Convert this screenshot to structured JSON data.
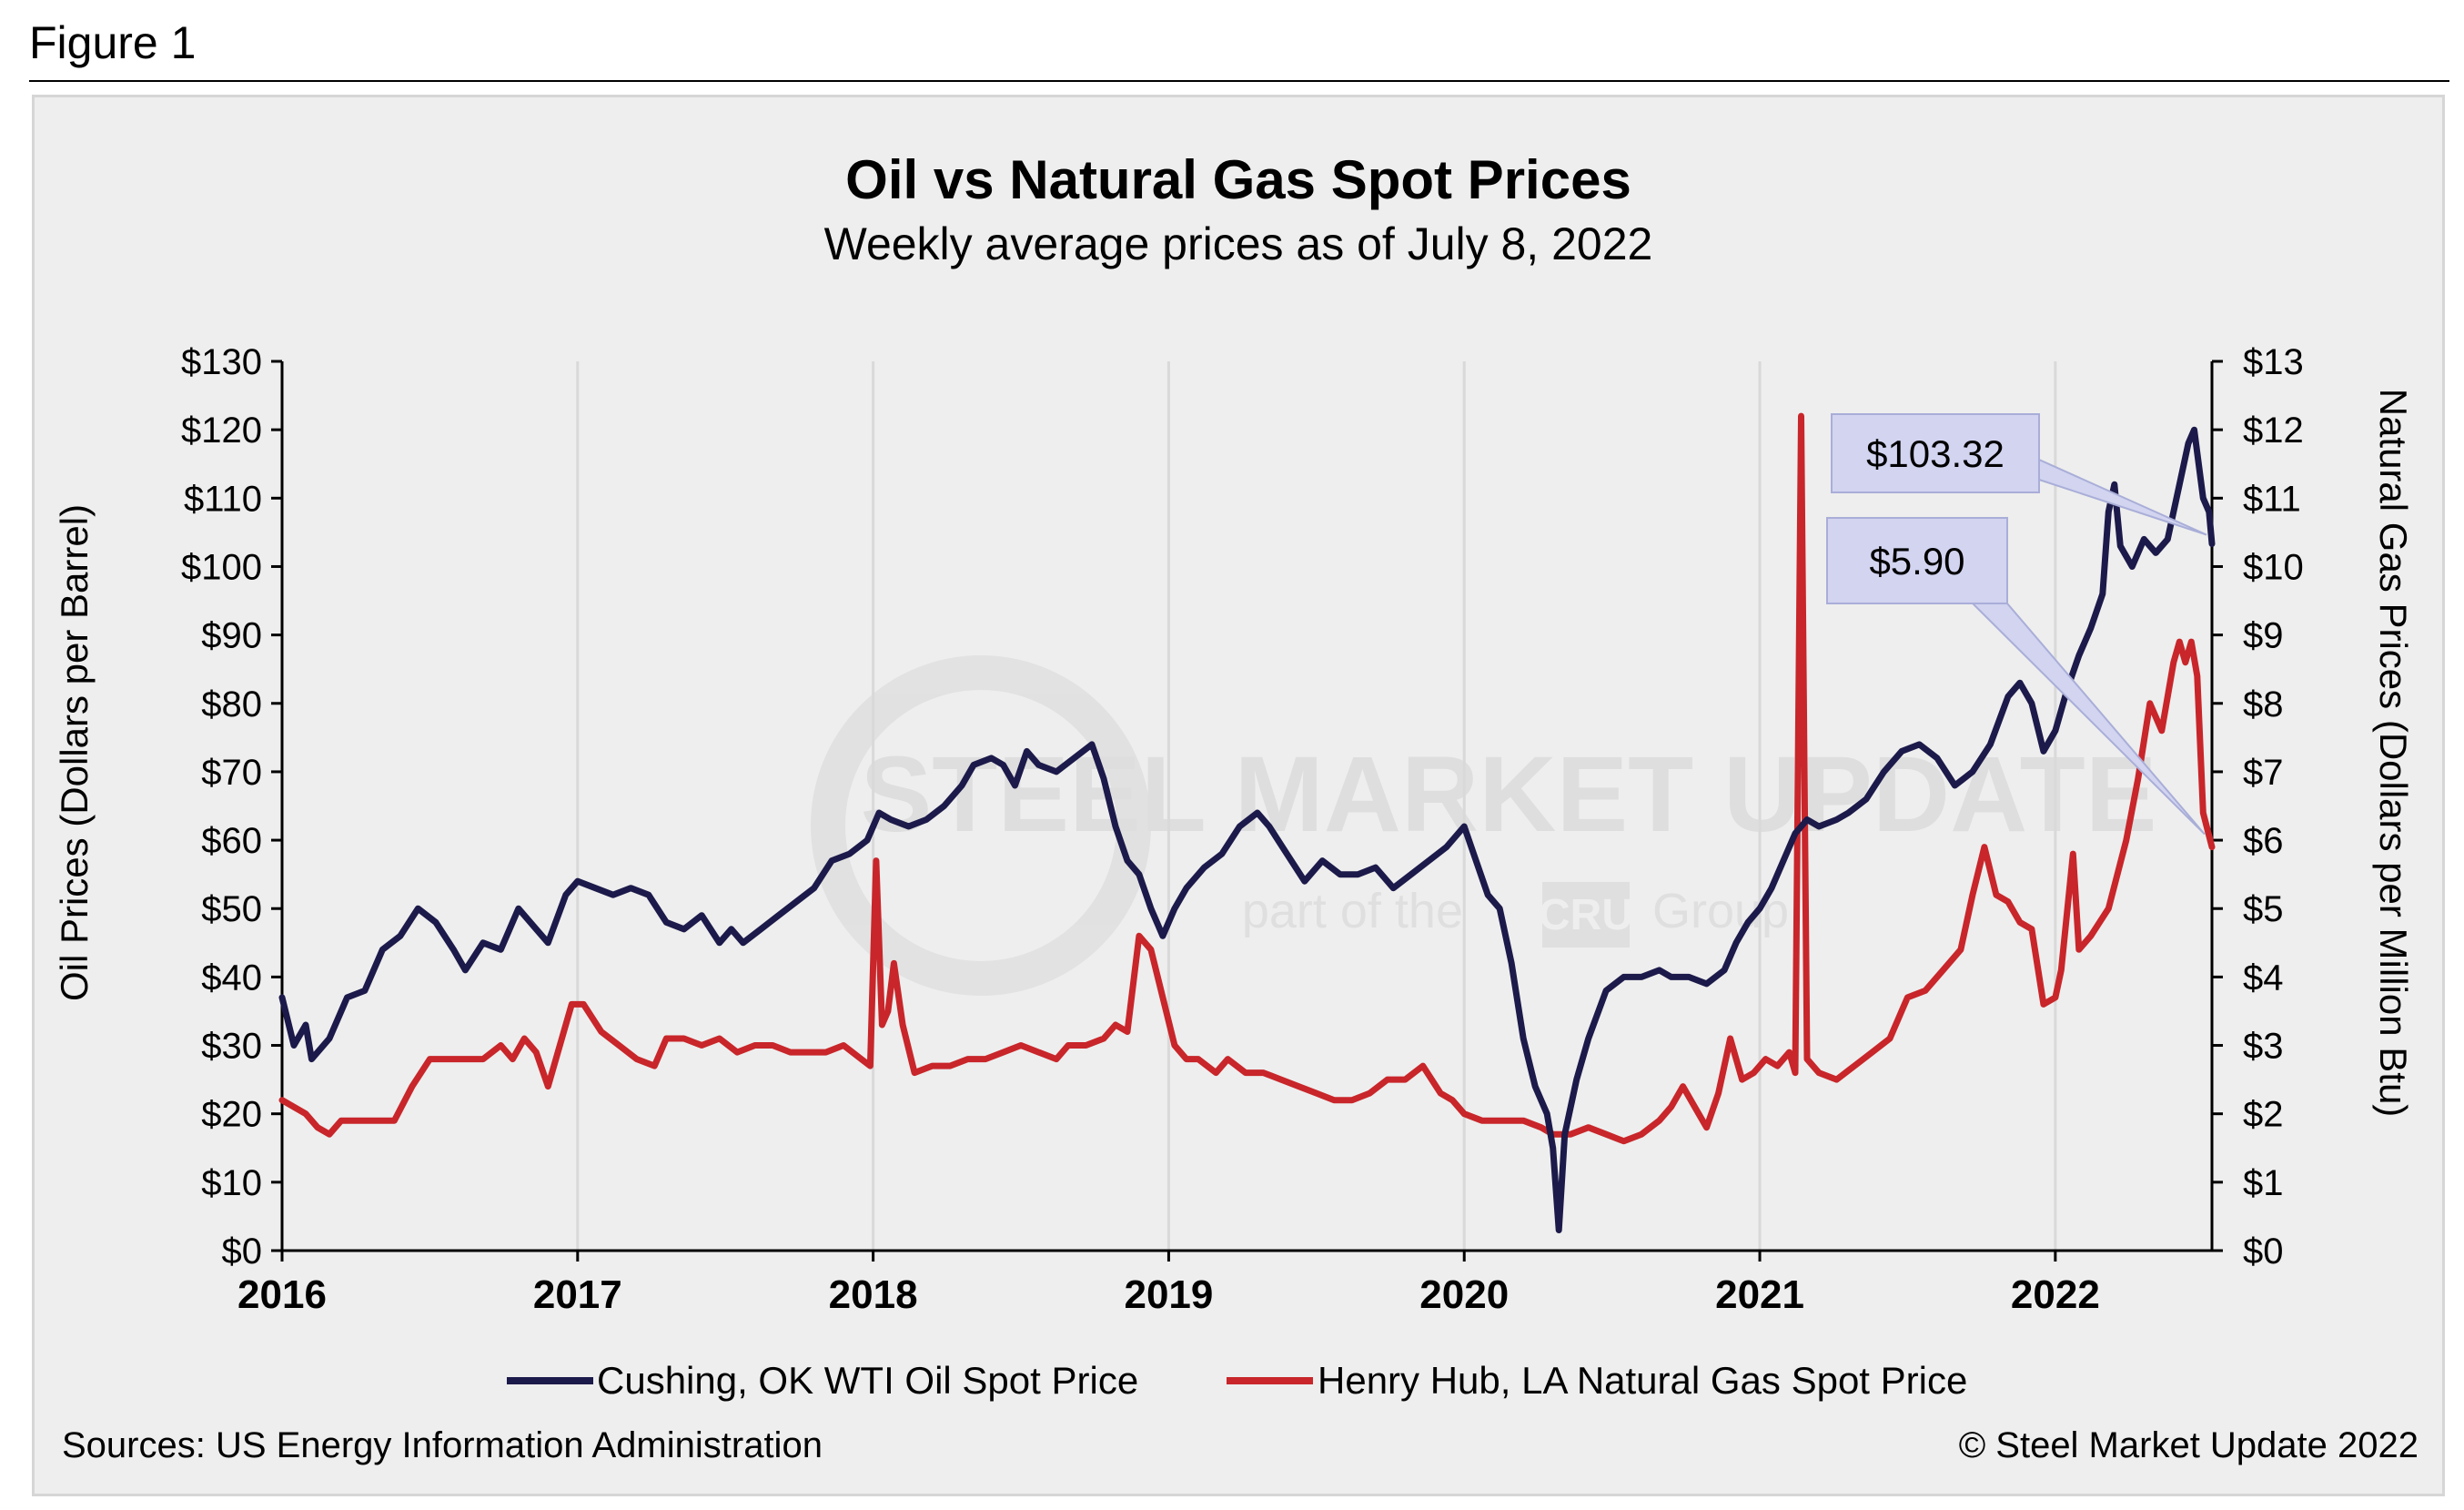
{
  "figure_label": "Figure 1",
  "chart_data": {
    "type": "line",
    "title": "Oil vs Natural Gas Spot Prices",
    "subtitle": "Weekly average prices as of July 8, 2022",
    "x_categories": [
      "2016",
      "2017",
      "2018",
      "2019",
      "2020",
      "2021",
      "2022"
    ],
    "xlim": [
      2016.0,
      2022.53
    ],
    "y_left": {
      "label": "Oil Prices (Dollars per Barrel)",
      "ylim": [
        0,
        130
      ],
      "ticks": [
        "$0",
        "$10",
        "$20",
        "$30",
        "$40",
        "$50",
        "$60",
        "$70",
        "$80",
        "$90",
        "$100",
        "$110",
        "$120",
        "$130"
      ]
    },
    "y_right": {
      "label": "Natural Gas Prices (Dollars per Million Btu)",
      "ylim": [
        0,
        13
      ],
      "ticks": [
        "$0",
        "$1",
        "$2",
        "$3",
        "$4",
        "$5",
        "$6",
        "$7",
        "$8",
        "$9",
        "$10",
        "$11",
        "$12",
        "$13"
      ]
    },
    "grid": "vertical",
    "series": [
      {
        "name": "Cushing, OK WTI Oil Spot Price",
        "axis": "left",
        "color": "#1c1a4a",
        "points": [
          [
            2016.0,
            37
          ],
          [
            2016.04,
            30
          ],
          [
            2016.08,
            33
          ],
          [
            2016.1,
            28
          ],
          [
            2016.16,
            31
          ],
          [
            2016.22,
            37
          ],
          [
            2016.28,
            38
          ],
          [
            2016.34,
            44
          ],
          [
            2016.4,
            46
          ],
          [
            2016.46,
            50
          ],
          [
            2016.52,
            48
          ],
          [
            2016.58,
            44
          ],
          [
            2016.62,
            41
          ],
          [
            2016.68,
            45
          ],
          [
            2016.74,
            44
          ],
          [
            2016.8,
            50
          ],
          [
            2016.86,
            47
          ],
          [
            2016.9,
            45
          ],
          [
            2016.96,
            52
          ],
          [
            2017.0,
            54
          ],
          [
            2017.06,
            53
          ],
          [
            2017.12,
            52
          ],
          [
            2017.18,
            53
          ],
          [
            2017.24,
            52
          ],
          [
            2017.3,
            48
          ],
          [
            2017.36,
            47
          ],
          [
            2017.42,
            49
          ],
          [
            2017.48,
            45
          ],
          [
            2017.52,
            47
          ],
          [
            2017.56,
            45
          ],
          [
            2017.62,
            47
          ],
          [
            2017.68,
            49
          ],
          [
            2017.74,
            51
          ],
          [
            2017.8,
            53
          ],
          [
            2017.86,
            57
          ],
          [
            2017.92,
            58
          ],
          [
            2017.98,
            60
          ],
          [
            2018.02,
            64
          ],
          [
            2018.06,
            63
          ],
          [
            2018.12,
            62
          ],
          [
            2018.18,
            63
          ],
          [
            2018.24,
            65
          ],
          [
            2018.3,
            68
          ],
          [
            2018.34,
            71
          ],
          [
            2018.4,
            72
          ],
          [
            2018.44,
            71
          ],
          [
            2018.48,
            68
          ],
          [
            2018.52,
            73
          ],
          [
            2018.56,
            71
          ],
          [
            2018.62,
            70
          ],
          [
            2018.68,
            72
          ],
          [
            2018.74,
            74
          ],
          [
            2018.78,
            69
          ],
          [
            2018.82,
            62
          ],
          [
            2018.86,
            57
          ],
          [
            2018.9,
            55
          ],
          [
            2018.94,
            50
          ],
          [
            2018.98,
            46
          ],
          [
            2019.02,
            50
          ],
          [
            2019.06,
            53
          ],
          [
            2019.12,
            56
          ],
          [
            2019.18,
            58
          ],
          [
            2019.24,
            62
          ],
          [
            2019.3,
            64
          ],
          [
            2019.34,
            62
          ],
          [
            2019.4,
            58
          ],
          [
            2019.46,
            54
          ],
          [
            2019.52,
            57
          ],
          [
            2019.58,
            55
          ],
          [
            2019.64,
            55
          ],
          [
            2019.7,
            56
          ],
          [
            2019.76,
            53
          ],
          [
            2019.82,
            55
          ],
          [
            2019.88,
            57
          ],
          [
            2019.94,
            59
          ],
          [
            2020.0,
            62
          ],
          [
            2020.04,
            57
          ],
          [
            2020.08,
            52
          ],
          [
            2020.12,
            50
          ],
          [
            2020.16,
            42
          ],
          [
            2020.2,
            31
          ],
          [
            2020.24,
            24
          ],
          [
            2020.28,
            20
          ],
          [
            2020.3,
            15
          ],
          [
            2020.32,
            3
          ],
          [
            2020.34,
            17
          ],
          [
            2020.38,
            25
          ],
          [
            2020.42,
            31
          ],
          [
            2020.48,
            38
          ],
          [
            2020.54,
            40
          ],
          [
            2020.6,
            40
          ],
          [
            2020.66,
            41
          ],
          [
            2020.7,
            40
          ],
          [
            2020.76,
            40
          ],
          [
            2020.82,
            39
          ],
          [
            2020.88,
            41
          ],
          [
            2020.92,
            45
          ],
          [
            2020.96,
            48
          ],
          [
            2021.0,
            50
          ],
          [
            2021.04,
            53
          ],
          [
            2021.08,
            57
          ],
          [
            2021.12,
            61
          ],
          [
            2021.16,
            63
          ],
          [
            2021.2,
            62
          ],
          [
            2021.26,
            63
          ],
          [
            2021.3,
            64
          ],
          [
            2021.36,
            66
          ],
          [
            2021.42,
            70
          ],
          [
            2021.48,
            73
          ],
          [
            2021.54,
            74
          ],
          [
            2021.6,
            72
          ],
          [
            2021.66,
            68
          ],
          [
            2021.72,
            70
          ],
          [
            2021.78,
            74
          ],
          [
            2021.84,
            81
          ],
          [
            2021.88,
            83
          ],
          [
            2021.92,
            80
          ],
          [
            2021.96,
            73
          ],
          [
            2022.0,
            76
          ],
          [
            2022.04,
            82
          ],
          [
            2022.08,
            87
          ],
          [
            2022.12,
            91
          ],
          [
            2022.16,
            96
          ],
          [
            2022.18,
            108
          ],
          [
            2022.2,
            112
          ],
          [
            2022.22,
            103
          ],
          [
            2022.26,
            100
          ],
          [
            2022.3,
            104
          ],
          [
            2022.34,
            102
          ],
          [
            2022.38,
            104
          ],
          [
            2022.42,
            112
          ],
          [
            2022.45,
            118
          ],
          [
            2022.47,
            120
          ],
          [
            2022.5,
            110
          ],
          [
            2022.52,
            108
          ],
          [
            2022.53,
            103.32
          ]
        ]
      },
      {
        "name": "Henry Hub, LA Natural Gas Spot Price",
        "axis": "right",
        "color": "#c8262a",
        "points": [
          [
            2016.0,
            2.2
          ],
          [
            2016.04,
            2.1
          ],
          [
            2016.08,
            2.0
          ],
          [
            2016.12,
            1.8
          ],
          [
            2016.16,
            1.7
          ],
          [
            2016.2,
            1.9
          ],
          [
            2016.26,
            1.9
          ],
          [
            2016.32,
            1.9
          ],
          [
            2016.38,
            1.9
          ],
          [
            2016.44,
            2.4
          ],
          [
            2016.5,
            2.8
          ],
          [
            2016.56,
            2.8
          ],
          [
            2016.62,
            2.8
          ],
          [
            2016.68,
            2.8
          ],
          [
            2016.74,
            3.0
          ],
          [
            2016.78,
            2.8
          ],
          [
            2016.82,
            3.1
          ],
          [
            2016.86,
            2.9
          ],
          [
            2016.9,
            2.4
          ],
          [
            2016.94,
            3.0
          ],
          [
            2016.98,
            3.6
          ],
          [
            2017.02,
            3.6
          ],
          [
            2017.08,
            3.2
          ],
          [
            2017.14,
            3.0
          ],
          [
            2017.2,
            2.8
          ],
          [
            2017.26,
            2.7
          ],
          [
            2017.3,
            3.1
          ],
          [
            2017.36,
            3.1
          ],
          [
            2017.42,
            3.0
          ],
          [
            2017.48,
            3.1
          ],
          [
            2017.54,
            2.9
          ],
          [
            2017.6,
            3.0
          ],
          [
            2017.66,
            3.0
          ],
          [
            2017.72,
            2.9
          ],
          [
            2017.78,
            2.9
          ],
          [
            2017.84,
            2.9
          ],
          [
            2017.9,
            3.0
          ],
          [
            2017.96,
            2.8
          ],
          [
            2017.99,
            2.7
          ],
          [
            2018.01,
            5.7
          ],
          [
            2018.03,
            3.3
          ],
          [
            2018.05,
            3.5
          ],
          [
            2018.07,
            4.2
          ],
          [
            2018.1,
            3.3
          ],
          [
            2018.14,
            2.6
          ],
          [
            2018.2,
            2.7
          ],
          [
            2018.26,
            2.7
          ],
          [
            2018.32,
            2.8
          ],
          [
            2018.38,
            2.8
          ],
          [
            2018.44,
            2.9
          ],
          [
            2018.5,
            3.0
          ],
          [
            2018.56,
            2.9
          ],
          [
            2018.62,
            2.8
          ],
          [
            2018.66,
            3.0
          ],
          [
            2018.72,
            3.0
          ],
          [
            2018.78,
            3.1
          ],
          [
            2018.82,
            3.3
          ],
          [
            2018.86,
            3.2
          ],
          [
            2018.9,
            4.6
          ],
          [
            2018.94,
            4.4
          ],
          [
            2018.98,
            3.7
          ],
          [
            2019.02,
            3.0
          ],
          [
            2019.06,
            2.8
          ],
          [
            2019.1,
            2.8
          ],
          [
            2019.16,
            2.6
          ],
          [
            2019.2,
            2.8
          ],
          [
            2019.26,
            2.6
          ],
          [
            2019.32,
            2.6
          ],
          [
            2019.38,
            2.5
          ],
          [
            2019.44,
            2.4
          ],
          [
            2019.5,
            2.3
          ],
          [
            2019.56,
            2.2
          ],
          [
            2019.62,
            2.2
          ],
          [
            2019.68,
            2.3
          ],
          [
            2019.74,
            2.5
          ],
          [
            2019.8,
            2.5
          ],
          [
            2019.86,
            2.7
          ],
          [
            2019.92,
            2.3
          ],
          [
            2019.96,
            2.2
          ],
          [
            2020.0,
            2.0
          ],
          [
            2020.06,
            1.9
          ],
          [
            2020.12,
            1.9
          ],
          [
            2020.2,
            1.9
          ],
          [
            2020.26,
            1.8
          ],
          [
            2020.3,
            1.7
          ],
          [
            2020.36,
            1.7
          ],
          [
            2020.42,
            1.8
          ],
          [
            2020.48,
            1.7
          ],
          [
            2020.54,
            1.6
          ],
          [
            2020.6,
            1.7
          ],
          [
            2020.66,
            1.9
          ],
          [
            2020.7,
            2.1
          ],
          [
            2020.74,
            2.4
          ],
          [
            2020.78,
            2.1
          ],
          [
            2020.82,
            1.8
          ],
          [
            2020.86,
            2.3
          ],
          [
            2020.9,
            3.1
          ],
          [
            2020.94,
            2.5
          ],
          [
            2020.98,
            2.6
          ],
          [
            2021.02,
            2.8
          ],
          [
            2021.06,
            2.7
          ],
          [
            2021.1,
            2.9
          ],
          [
            2021.12,
            2.6
          ],
          [
            2021.14,
            12.2
          ],
          [
            2021.16,
            2.8
          ],
          [
            2021.2,
            2.6
          ],
          [
            2021.26,
            2.5
          ],
          [
            2021.32,
            2.7
          ],
          [
            2021.38,
            2.9
          ],
          [
            2021.44,
            3.1
          ],
          [
            2021.5,
            3.7
          ],
          [
            2021.56,
            3.8
          ],
          [
            2021.62,
            4.1
          ],
          [
            2021.68,
            4.4
          ],
          [
            2021.72,
            5.2
          ],
          [
            2021.76,
            5.9
          ],
          [
            2021.8,
            5.2
          ],
          [
            2021.84,
            5.1
          ],
          [
            2021.88,
            4.8
          ],
          [
            2021.92,
            4.7
          ],
          [
            2021.96,
            3.6
          ],
          [
            2022.0,
            3.7
          ],
          [
            2022.02,
            4.1
          ],
          [
            2022.06,
            5.8
          ],
          [
            2022.08,
            4.4
          ],
          [
            2022.12,
            4.6
          ],
          [
            2022.18,
            5.0
          ],
          [
            2022.24,
            6.0
          ],
          [
            2022.28,
            6.9
          ],
          [
            2022.32,
            8.0
          ],
          [
            2022.36,
            7.6
          ],
          [
            2022.4,
            8.6
          ],
          [
            2022.42,
            8.9
          ],
          [
            2022.44,
            8.6
          ],
          [
            2022.46,
            8.9
          ],
          [
            2022.48,
            8.4
          ],
          [
            2022.5,
            6.4
          ],
          [
            2022.53,
            5.9
          ]
        ]
      }
    ],
    "annotations": [
      {
        "text": "$103.32",
        "series": "Cushing, OK WTI Oil Spot Price"
      },
      {
        "text": "$5.90",
        "series": "Henry Hub, LA Natural Gas Spot Price"
      }
    ],
    "watermark": {
      "main": "STEEL MARKET UPDATE",
      "sub_left": "part of the",
      "sub_box": "CRU",
      "sub_right": "Group"
    }
  },
  "footer": {
    "source": "Sources: US Energy Information Administration",
    "copyright": "© Steel Market Update 2022"
  }
}
